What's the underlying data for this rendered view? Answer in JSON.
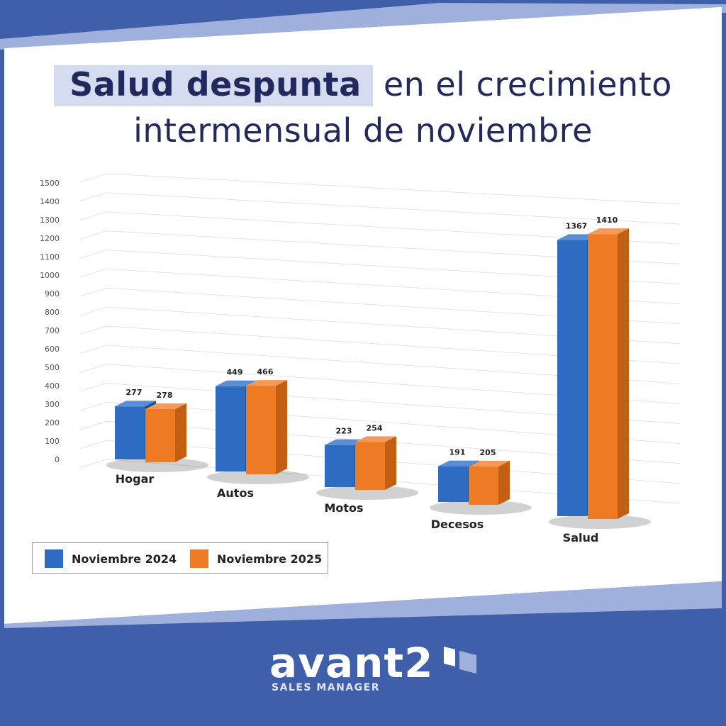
{
  "title": {
    "highlight": "Salud despunta",
    "rest": "en el crecimiento",
    "line2": "intermensual de noviembre"
  },
  "colors": {
    "navy": "#3f5faa",
    "title": "#22295e",
    "highlight_bg": "#d6dcef",
    "series_2024": "#2e6cc2",
    "series_2025": "#ee7a23"
  },
  "logo": {
    "word": "avant2",
    "sub": "SALES MANAGER"
  },
  "chart_data": {
    "type": "bar",
    "style": "3d-clustered",
    "categories": [
      "Hogar",
      "Autos",
      "Motos",
      "Decesos",
      "Salud"
    ],
    "series": [
      {
        "name": "Noviembre 2024",
        "values": [
          277,
          449,
          223,
          191,
          1367
        ]
      },
      {
        "name": "Noviembre 2025",
        "values": [
          278,
          466,
          254,
          205,
          1410
        ]
      }
    ],
    "y_ticks": [
      "0",
      "100",
      "200",
      "300",
      "400",
      "500",
      "600",
      "700",
      "800",
      "900",
      "1000",
      "1100",
      "1200",
      "1300",
      "1400",
      "1500"
    ],
    "ylim": [
      0,
      1500
    ],
    "grid": true,
    "legend": "bottom-left",
    "data_labels": true
  }
}
